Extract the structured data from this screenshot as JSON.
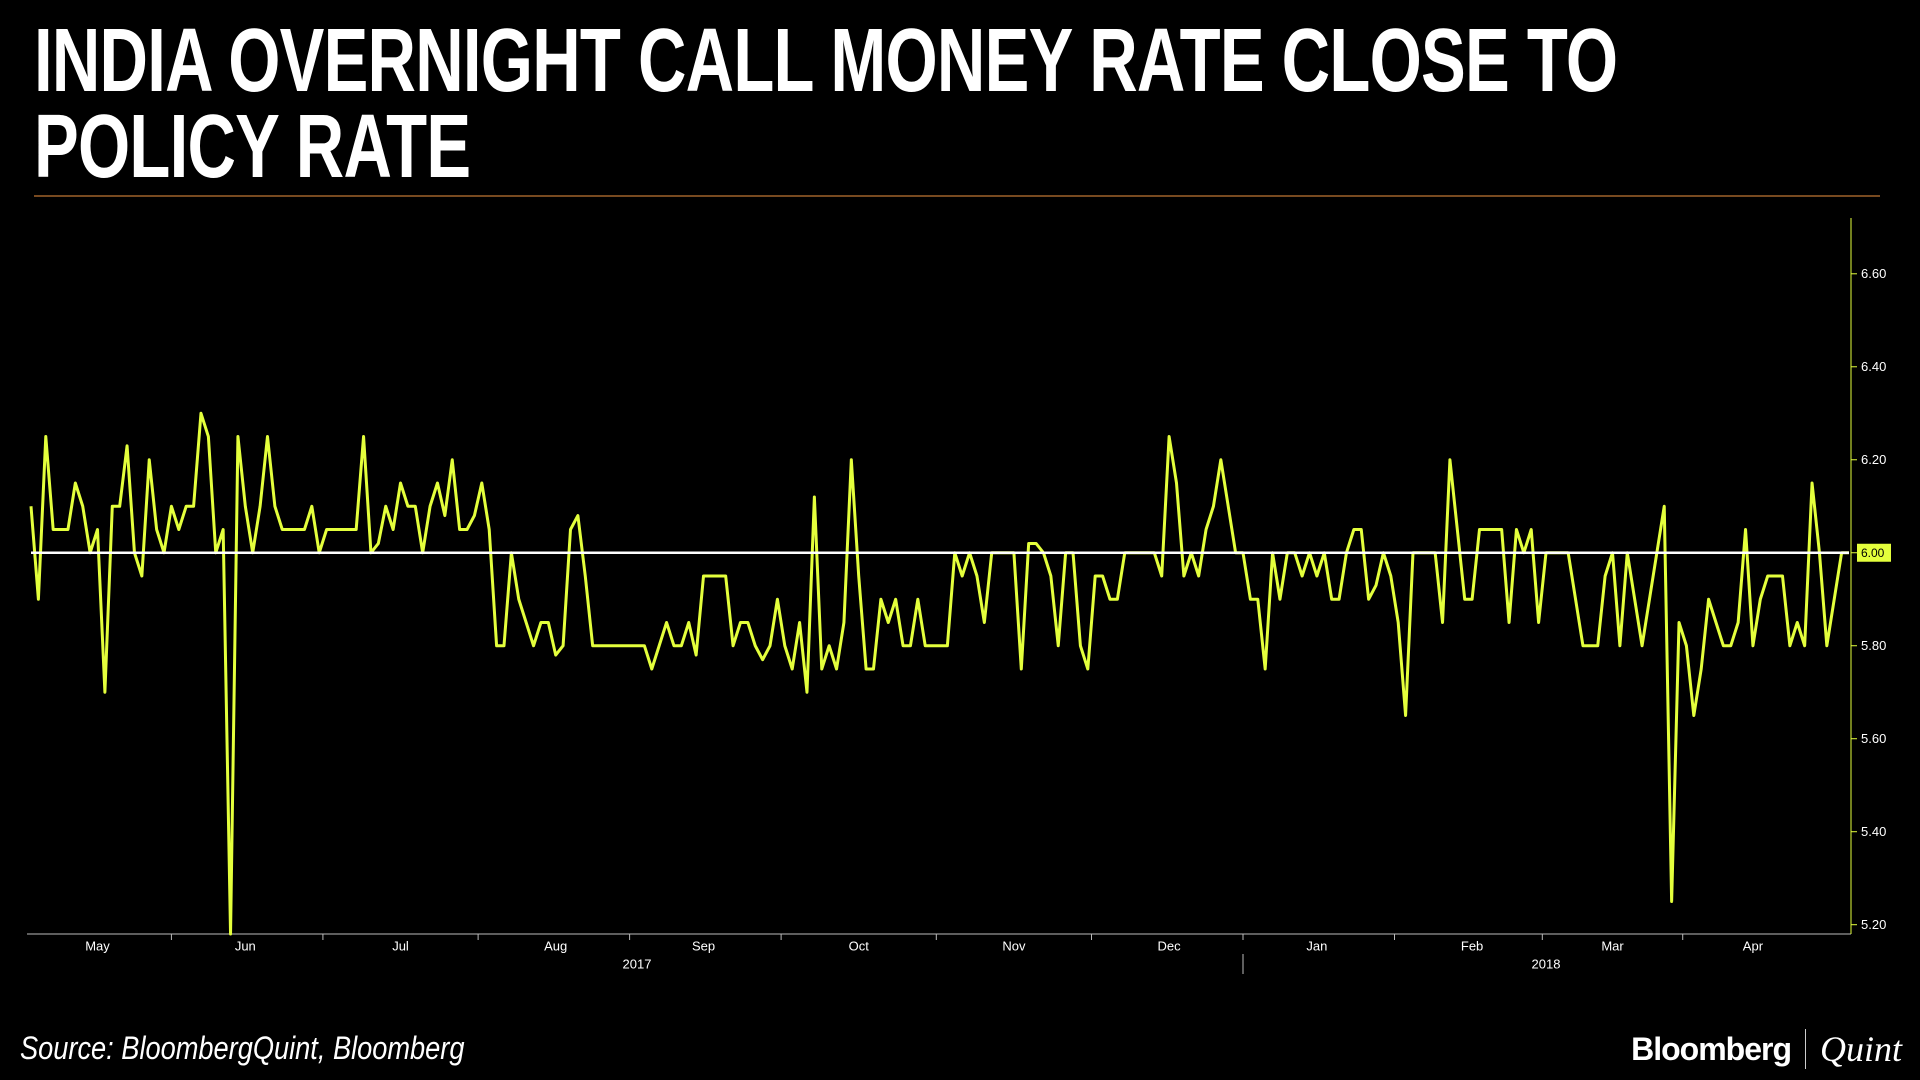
{
  "chart_data": {
    "type": "line",
    "title": "INDIA OVERNIGHT CALL MONEY RATE CLOSE TO POLICY RATE",
    "source": "Source: BloombergQuint, Bloomberg",
    "brand": [
      "Bloomberg",
      "Quint"
    ],
    "series": [
      {
        "name": "Overnight call money rate",
        "color": "#e4ff3c",
        "values": [
          6.1,
          5.9,
          6.25,
          6.05,
          6.05,
          6.05,
          6.15,
          6.1,
          6.0,
          6.05,
          5.7,
          6.1,
          6.1,
          6.23,
          6.0,
          5.95,
          6.2,
          6.05,
          6.0,
          6.1,
          6.05,
          6.1,
          6.1,
          6.3,
          6.25,
          6.0,
          6.05,
          5.18,
          6.25,
          6.1,
          6.0,
          6.1,
          6.25,
          6.1,
          6.05,
          6.05,
          6.05,
          6.05,
          6.1,
          6.0,
          6.05,
          6.05,
          6.05,
          6.05,
          6.05,
          6.25,
          6.0,
          6.02,
          6.1,
          6.05,
          6.15,
          6.1,
          6.1,
          6.0,
          6.1,
          6.15,
          6.08,
          6.2,
          6.05,
          6.05,
          6.08,
          6.15,
          6.05,
          5.8,
          5.8,
          6.0,
          5.9,
          5.85,
          5.8,
          5.85,
          5.85,
          5.78,
          5.8,
          6.05,
          6.08,
          5.95,
          5.8,
          5.8,
          5.8,
          5.8,
          5.8,
          5.8,
          5.8,
          5.8,
          5.75,
          5.8,
          5.85,
          5.8,
          5.8,
          5.85,
          5.78,
          5.95,
          5.95,
          5.95,
          5.95,
          5.8,
          5.85,
          5.85,
          5.8,
          5.77,
          5.8,
          5.9,
          5.8,
          5.75,
          5.85,
          5.7,
          6.12,
          5.75,
          5.8,
          5.75,
          5.85,
          6.2,
          5.95,
          5.75,
          5.75,
          5.9,
          5.85,
          5.9,
          5.8,
          5.8,
          5.9,
          5.8,
          5.8,
          5.8,
          5.8,
          6.0,
          5.95,
          6.0,
          5.95,
          5.85,
          6.0,
          6.0,
          6.0,
          6.0,
          5.75,
          6.02,
          6.02,
          6.0,
          5.95,
          5.8,
          6.0,
          6.0,
          5.8,
          5.75,
          5.95,
          5.95,
          5.9,
          5.9,
          6.0,
          6.0,
          6.0,
          6.0,
          6.0,
          5.95,
          6.25,
          6.15,
          5.95,
          6.0,
          5.95,
          6.05,
          6.1,
          6.2,
          6.1,
          6.0,
          6.0,
          5.9,
          5.9,
          5.75,
          6.0,
          5.9,
          6.0,
          6.0,
          5.95,
          6.0,
          5.95,
          6.0,
          5.9,
          5.9,
          6.0,
          6.05,
          6.05,
          5.9,
          5.93,
          6.0,
          5.95,
          5.85,
          5.65,
          6.0,
          6.0,
          6.0,
          6.0,
          5.85,
          6.2,
          6.05,
          5.9,
          5.9,
          6.05,
          6.05,
          6.05,
          6.05,
          5.85,
          6.05,
          6.0,
          6.05,
          5.85,
          6.0,
          6.0,
          6.0,
          6.0,
          5.9,
          5.8,
          5.8,
          5.8,
          5.95,
          6.0,
          5.8,
          6.0,
          5.9,
          5.8,
          5.9,
          6.0,
          6.1,
          5.25,
          5.85,
          5.8,
          5.65,
          5.75,
          5.9,
          5.85,
          5.8,
          5.8,
          5.85,
          6.05,
          5.8,
          5.9,
          5.95,
          5.95,
          5.95,
          5.8,
          5.85,
          5.8,
          6.15,
          6.0,
          5.8,
          5.9,
          6.0,
          6.0
        ]
      }
    ],
    "xticks": [
      {
        "value": 9,
        "label": "May"
      },
      {
        "value": 29,
        "label": "Jun"
      },
      {
        "value": 50,
        "label": "Jul"
      },
      {
        "value": 71,
        "label": "Aug"
      },
      {
        "value": 91,
        "label": "Sep"
      },
      {
        "value": 112,
        "label": "Oct"
      },
      {
        "value": 133,
        "label": "Nov"
      },
      {
        "value": 154,
        "label": "Dec"
      },
      {
        "value": 174,
        "label": "Jan"
      },
      {
        "value": 195,
        "label": "Feb"
      },
      {
        "value": 214,
        "label": "Mar"
      },
      {
        "value": 233,
        "label": "Apr"
      }
    ],
    "year_labels": [
      {
        "value": 82,
        "label": "2017"
      },
      {
        "value": 205,
        "label": "2018"
      }
    ],
    "ylim": [
      5.18,
      6.72
    ],
    "yticks": [
      {
        "value": 5.2,
        "label": "5.20"
      },
      {
        "value": 5.4,
        "label": "5.40"
      },
      {
        "value": 5.6,
        "label": "5.60"
      },
      {
        "value": 5.8,
        "label": "5.80"
      },
      {
        "value": 6.0,
        "label": "6.00"
      },
      {
        "value": 6.2,
        "label": "6.20"
      },
      {
        "value": 6.4,
        "label": "6.40"
      },
      {
        "value": 6.6,
        "label": "6.60"
      }
    ],
    "highlight_tick": 6.0,
    "reference_line": 6.0,
    "reference_color": "#ffffff",
    "axis_side": "right"
  }
}
